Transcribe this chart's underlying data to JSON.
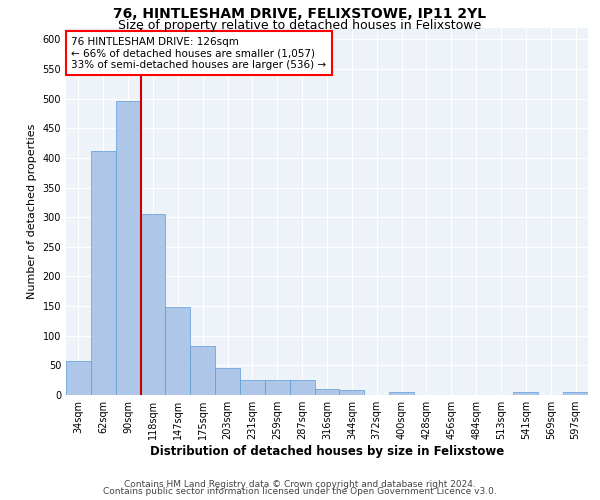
{
  "title": "76, HINTLESHAM DRIVE, FELIXSTOWE, IP11 2YL",
  "subtitle": "Size of property relative to detached houses in Felixstowe",
  "xlabel": "Distribution of detached houses by size in Felixstowe",
  "ylabel": "Number of detached properties",
  "bar_values": [
    58,
    412,
    496,
    305,
    149,
    82,
    45,
    25,
    25,
    25,
    10,
    8,
    0,
    5,
    0,
    0,
    0,
    0,
    5,
    0,
    5
  ],
  "categories": [
    "34sqm",
    "62sqm",
    "90sqm",
    "118sqm",
    "147sqm",
    "175sqm",
    "203sqm",
    "231sqm",
    "259sqm",
    "287sqm",
    "316sqm",
    "344sqm",
    "372sqm",
    "400sqm",
    "428sqm",
    "456sqm",
    "484sqm",
    "513sqm",
    "541sqm",
    "569sqm",
    "597sqm"
  ],
  "bar_color": "#aec6e8",
  "bar_edge_color": "#5b9bd5",
  "red_line_x": 2.5,
  "red_line_color": "#cc0000",
  "annotation_line1": "76 HINTLESHAM DRIVE: 126sqm",
  "annotation_line2": "← 66% of detached houses are smaller (1,057)",
  "annotation_line3": "33% of semi-detached houses are larger (536) →",
  "annotation_box_color": "white",
  "annotation_box_edge_color": "red",
  "ylim": [
    0,
    620
  ],
  "yticks": [
    0,
    50,
    100,
    150,
    200,
    250,
    300,
    350,
    400,
    450,
    500,
    550,
    600
  ],
  "footer_line1": "Contains HM Land Registry data © Crown copyright and database right 2024.",
  "footer_line2": "Contains public sector information licensed under the Open Government Licence v3.0.",
  "background_color": "#eef2f9",
  "grid_color": "#ffffff",
  "title_fontsize": 10,
  "subtitle_fontsize": 9,
  "ylabel_fontsize": 8,
  "xlabel_fontsize": 8.5,
  "tick_fontsize": 7,
  "annotation_fontsize": 7.5,
  "footer_fontsize": 6.5
}
